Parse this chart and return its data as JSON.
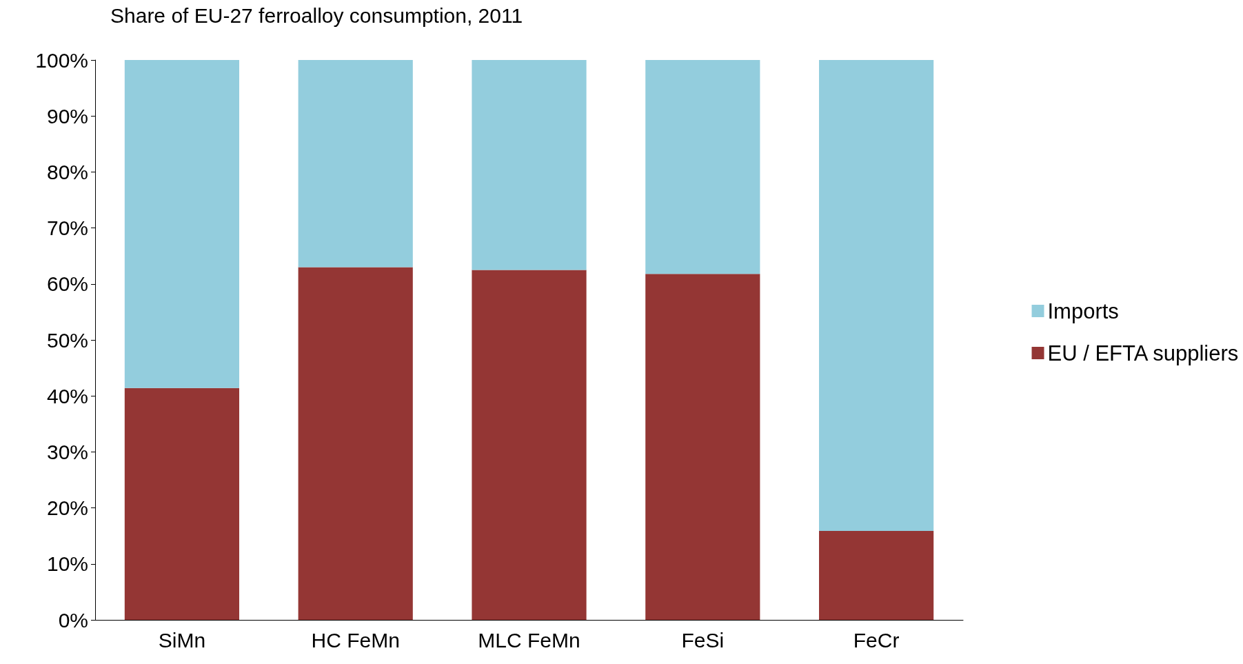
{
  "chart_data": {
    "type": "bar",
    "title": "Share of EU-27 ferroalloy consumption, 2011",
    "categories": [
      "SiMn",
      "HC FeMn",
      "MLC FeMn",
      "FeSi",
      "FeCr"
    ],
    "stacked": true,
    "series": [
      {
        "name": "EU / EFTA suppliers",
        "color": "#943634",
        "values": [
          41.4,
          63.0,
          62.5,
          61.8,
          15.9
        ]
      },
      {
        "name": "Imports",
        "color": "#93cddd",
        "values": [
          58.6,
          37.0,
          37.5,
          38.2,
          84.1
        ]
      }
    ],
    "ylim": [
      0,
      100
    ],
    "yticks": [
      {
        "value": 0,
        "label": "0%"
      },
      {
        "value": 10,
        "label": "10%"
      },
      {
        "value": 20,
        "label": "20%"
      },
      {
        "value": 30,
        "label": "30%"
      },
      {
        "value": 40,
        "label": "40%"
      },
      {
        "value": 50,
        "label": "50%"
      },
      {
        "value": 60,
        "label": "60%"
      },
      {
        "value": 70,
        "label": "70%"
      },
      {
        "value": 80,
        "label": "80%"
      },
      {
        "value": 90,
        "label": "90%"
      },
      {
        "value": 100,
        "label": "100%"
      }
    ],
    "grid": false,
    "legend": "right"
  }
}
